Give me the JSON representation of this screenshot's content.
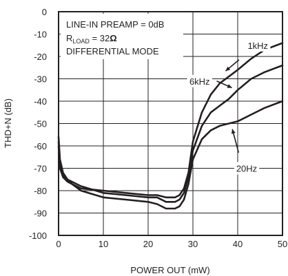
{
  "chart_data": {
    "type": "line",
    "xlabel": "POWER OUT (mW)",
    "ylabel": "THD+N (dB)",
    "xlim": [
      0,
      50
    ],
    "ylim": [
      -100,
      0
    ],
    "x_ticks": [
      "0",
      "10",
      "20",
      "30",
      "40",
      "50"
    ],
    "y_ticks": [
      "0",
      "-10",
      "-20",
      "-30",
      "-40",
      "-50",
      "-60",
      "-70",
      "-80",
      "-90",
      "-100"
    ],
    "grid": true,
    "annotation_lines": {
      "line1": "LINE-IN PREAMP = 0dB",
      "line2_main": "R",
      "line2_sub": "LOAD",
      "line2_rest": " = 32",
      "line2_omega": "Ω",
      "line3": "DIFFERENTIAL MODE"
    },
    "series": [
      {
        "name": "1kHz",
        "x": [
          0,
          0.3,
          1,
          2,
          3,
          5,
          10,
          15,
          20,
          22,
          24,
          26,
          27,
          28,
          29,
          30,
          32,
          34,
          36,
          38,
          40,
          43,
          46,
          50
        ],
        "y": [
          -56,
          -66,
          -72,
          -75,
          -77,
          -79,
          -80,
          -81,
          -82,
          -82,
          -83,
          -83,
          -82,
          -79,
          -72,
          -58,
          -45,
          -37,
          -32,
          -29,
          -26,
          -21,
          -17,
          -14
        ]
      },
      {
        "name": "6kHz",
        "x": [
          0,
          0.3,
          1,
          2,
          3,
          5,
          10,
          15,
          20,
          22,
          24,
          26,
          27,
          28,
          29,
          30,
          32,
          34,
          36,
          38,
          40,
          43,
          46,
          50
        ],
        "y": [
          -58,
          -68,
          -73,
          -75,
          -76,
          -78,
          -81,
          -82,
          -83,
          -83,
          -85,
          -85,
          -84,
          -81,
          -74,
          -62,
          -51,
          -45,
          -42,
          -39,
          -35,
          -30,
          -27,
          -24
        ]
      },
      {
        "name": "20Hz",
        "x": [
          0,
          0.3,
          1,
          2,
          3,
          5,
          10,
          15,
          20,
          22,
          24,
          26,
          27,
          28,
          29,
          30,
          32,
          34,
          36,
          38,
          40,
          43,
          46,
          50
        ],
        "y": [
          -60,
          -70,
          -74,
          -76,
          -77,
          -80,
          -83,
          -84,
          -85,
          -86,
          -88,
          -88,
          -87,
          -84,
          -77,
          -66,
          -57,
          -53,
          -51,
          -50,
          -49,
          -46,
          -43,
          -40
        ]
      }
    ],
    "series_labels": [
      {
        "text": "1kHz",
        "x": 44.5,
        "y": -15
      },
      {
        "text": "6kHz",
        "x": 31.5,
        "y": -31
      },
      {
        "text": "20Hz",
        "x": 42,
        "y": -70
      }
    ],
    "leaders": [
      {
        "from": [
          40.3,
          -21.5
        ],
        "to": [
          37.3,
          -26.5
        ]
      },
      {
        "from": [
          35.3,
          -31
        ],
        "to": [
          38.7,
          -34
        ]
      },
      {
        "from": [
          40.2,
          -63
        ],
        "to": [
          38.8,
          -52.5
        ]
      }
    ]
  }
}
